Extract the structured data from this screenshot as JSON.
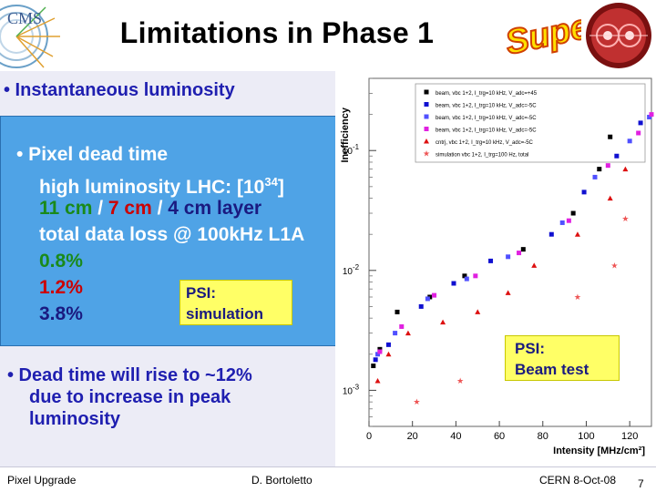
{
  "title": "Limitations in Phase 1",
  "logos": {
    "cms": "CMS",
    "super": "Super"
  },
  "bullets": {
    "lumi": "• Instantaneous luminosity",
    "pixel_dead_time": "• Pixel dead time",
    "high_lumi_pre": "high luminosity LHC: [10",
    "high_lumi_exp": "34",
    "high_lumi_post": "]",
    "layers": {
      "a": "11 cm",
      "sep1": " / ",
      "b": "7 cm",
      "sep2": " / ",
      "c": "4 cm layer"
    },
    "data_loss": "total data loss @ 100kHz L1A",
    "values": [
      "0.8%",
      "1.2%",
      "3.8%"
    ],
    "psi_simulation": {
      "line1": "PSI:",
      "line2": "simulation"
    },
    "dead_time_rise": [
      "• Dead time will rise to ~12%",
      "due to increase in peak",
      "luminosity"
    ]
  },
  "psi_beam_test": {
    "line1": "PSI:",
    "line2": "Beam test"
  },
  "footer": {
    "left": "Pixel Upgrade",
    "center": "D. Bortoletto",
    "right": "CERN 8-Oct-08",
    "page": "7"
  },
  "colors": {
    "bullet_text": "#1f1fb0",
    "box_blue": "#4fa3e6",
    "yellow": "#ffff66",
    "green": "#1a8a1a",
    "red": "#cc0000"
  },
  "chart_data": {
    "type": "scatter",
    "ylabel": "Inefficiency",
    "xlabel": "Intensity [MHz/cm²]",
    "xlim": [
      0,
      130
    ],
    "ylim": [
      0.0005,
      0.4
    ],
    "ylog": true,
    "x_ticks": [
      "0",
      "20",
      "40",
      "60",
      "80",
      "100",
      "120"
    ],
    "y_ticks": [
      {
        "v": 0.1,
        "base": "10",
        "exp": "-1"
      },
      {
        "v": 0.01,
        "base": "10",
        "exp": "-2"
      },
      {
        "v": 0.001,
        "base": "10",
        "exp": "-3"
      }
    ],
    "legend_position": "top-right",
    "series": [
      {
        "name": "beam, vbc 1+2, I_trg=10 kHz, V_adc=+45",
        "color": "#000000",
        "marker": "square",
        "points": [
          [
            2,
            0.0016
          ],
          [
            5,
            0.0022
          ],
          [
            13,
            0.0045
          ],
          [
            28,
            0.006
          ],
          [
            44,
            0.009
          ],
          [
            71,
            0.015
          ],
          [
            94,
            0.03
          ],
          [
            106,
            0.07
          ],
          [
            111,
            0.13
          ]
        ]
      },
      {
        "name": "beam, vbc 1+2, I_trg=10 kHz, V_adc=-5C",
        "color": "#1010d0",
        "marker": "square",
        "points": [
          [
            3,
            0.0018
          ],
          [
            9,
            0.0024
          ],
          [
            24,
            0.005
          ],
          [
            39,
            0.0078
          ],
          [
            56,
            0.012
          ],
          [
            84,
            0.02
          ],
          [
            99,
            0.045
          ],
          [
            114,
            0.09
          ],
          [
            125,
            0.17
          ]
        ]
      },
      {
        "name": "beam, vbc 1+2, I_trg=10 kHz, V_adc=-5C",
        "color": "#5050ff",
        "marker": "square",
        "points": [
          [
            4,
            0.002
          ],
          [
            12,
            0.003
          ],
          [
            27,
            0.0058
          ],
          [
            45,
            0.0085
          ],
          [
            64,
            0.013
          ],
          [
            89,
            0.025
          ],
          [
            104,
            0.06
          ],
          [
            120,
            0.12
          ],
          [
            129,
            0.19
          ]
        ]
      },
      {
        "name": "beam, vbc 1+2, I_trg=10 kHz, V_adc=-5C",
        "color": "#e020e0",
        "marker": "square",
        "points": [
          [
            5,
            0.0021
          ],
          [
            15,
            0.0034
          ],
          [
            30,
            0.0062
          ],
          [
            49,
            0.009
          ],
          [
            69,
            0.014
          ],
          [
            92,
            0.026
          ],
          [
            110,
            0.075
          ],
          [
            124,
            0.14
          ],
          [
            130,
            0.2
          ]
        ]
      },
      {
        "name": "cntrj, vbc 1+2, I_trg=10 kHz, V_adc=-5C",
        "color": "#dd1010",
        "marker": "triangle",
        "points": [
          [
            4,
            0.0012
          ],
          [
            9,
            0.002
          ],
          [
            18,
            0.003
          ],
          [
            34,
            0.0037
          ],
          [
            50,
            0.0045
          ],
          [
            64,
            0.0065
          ],
          [
            76,
            0.011
          ],
          [
            96,
            0.02
          ],
          [
            111,
            0.04
          ],
          [
            118,
            0.07
          ]
        ]
      },
      {
        "name": "simulation vbc 1+2, I_trg=100 Hz, total",
        "color": "#ee5555",
        "marker": "star",
        "points": [
          [
            22,
            0.0008
          ],
          [
            42,
            0.0012
          ],
          [
            68,
            0.0026
          ],
          [
            96,
            0.006
          ],
          [
            113,
            0.011
          ],
          [
            118,
            0.027
          ]
        ]
      }
    ]
  }
}
